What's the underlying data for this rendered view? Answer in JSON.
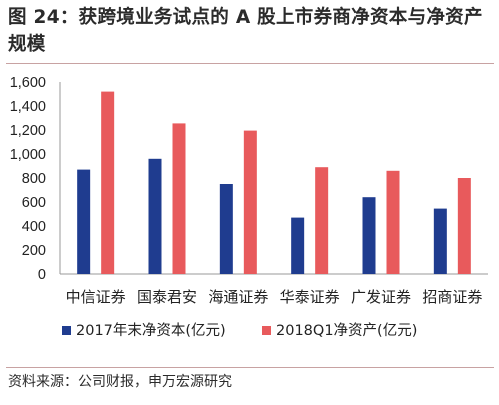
{
  "title": "图 24：获跨境业务试点的 A 股上市券商净资本与净资产规模",
  "source": "资料来源：公司财报，申万宏源研究",
  "chart_data": {
    "type": "bar",
    "categories": [
      "中信证券",
      "国泰君安",
      "海通证券",
      "华泰证券",
      "广发证券",
      "招商证券"
    ],
    "series": [
      {
        "name": "2017年末净资本(亿元)",
        "color": "#1f3c8f",
        "values": [
          870,
          960,
          750,
          470,
          640,
          545
        ]
      },
      {
        "name": "2018Q1净资产(亿元)",
        "color": "#e85a5c",
        "values": [
          1520,
          1255,
          1195,
          890,
          860,
          800
        ]
      }
    ],
    "yticks": [
      "0",
      "200",
      "400",
      "600",
      "800",
      "1,000",
      "1,200",
      "1,400",
      "1,600"
    ],
    "ylim": [
      0,
      1600
    ],
    "legend_position": "bottom",
    "grid": false
  }
}
